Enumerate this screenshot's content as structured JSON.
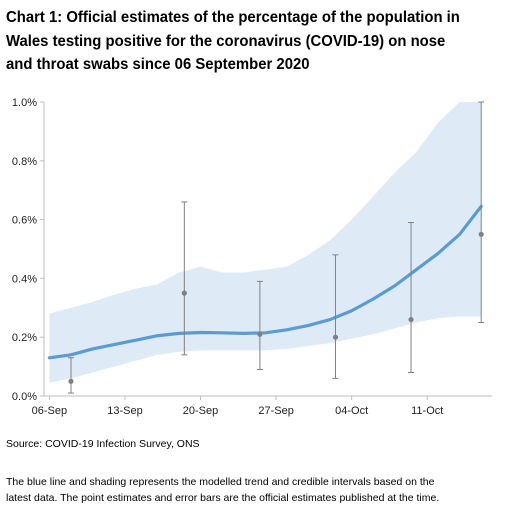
{
  "chart_title": {
    "lines": [
      "Chart 1: Official estimates of the percentage of the population in",
      "Wales testing positive for the coronavirus (COVID-19) on nose",
      "and throat swabs since 06 September 2020"
    ]
  },
  "source": "Source: COVID-19 Infection Survey, ONS",
  "footnote": {
    "lines": [
      "The blue line and shading represents the modelled trend and credible intervals based on the",
      "latest data. The point estimates and error bars are the official estimates published at the time."
    ]
  },
  "colors": {
    "trend_line": "#5b9bd5",
    "credible_band": "#deebf7",
    "estimate_point": "#808080",
    "error_bar": "#808080",
    "axis": "#bfbfbf"
  },
  "chart_data": {
    "type": "line",
    "x_ticks": [
      "06-Sep",
      "13-Sep",
      "20-Sep",
      "27-Sep",
      "04-Oct",
      "11-Oct"
    ],
    "y_ticks": [
      "0.0%",
      "0.2%",
      "0.4%",
      "0.6%",
      "0.8%",
      "1.0%"
    ],
    "ylim": [
      0,
      1.0
    ],
    "xlim_days": [
      -0.5,
      41
    ],
    "grid": false,
    "modelled_trend": {
      "x_days": [
        0,
        2,
        4,
        6,
        8,
        10,
        12,
        14,
        16,
        18,
        20,
        22,
        24,
        26,
        28,
        30,
        32,
        34,
        36,
        38,
        40
      ],
      "y": [
        0.13,
        0.14,
        0.16,
        0.175,
        0.19,
        0.205,
        0.213,
        0.216,
        0.215,
        0.213,
        0.215,
        0.225,
        0.24,
        0.26,
        0.29,
        0.33,
        0.375,
        0.43,
        0.485,
        0.55,
        0.645
      ],
      "lower": [
        0.045,
        0.06,
        0.08,
        0.1,
        0.12,
        0.14,
        0.15,
        0.155,
        0.155,
        0.155,
        0.155,
        0.16,
        0.17,
        0.18,
        0.195,
        0.21,
        0.23,
        0.25,
        0.265,
        0.27,
        0.27
      ],
      "upper": [
        0.28,
        0.3,
        0.32,
        0.345,
        0.365,
        0.38,
        0.42,
        0.44,
        0.42,
        0.42,
        0.43,
        0.44,
        0.48,
        0.53,
        0.6,
        0.68,
        0.76,
        0.83,
        0.93,
        1.0,
        1.0
      ]
    },
    "official_estimates": [
      {
        "x_day": 2,
        "value": 0.05,
        "lower": 0.01,
        "upper": 0.13
      },
      {
        "x_day": 12.5,
        "value": 0.35,
        "lower": 0.14,
        "upper": 0.66
      },
      {
        "x_day": 19.5,
        "value": 0.21,
        "lower": 0.09,
        "upper": 0.39
      },
      {
        "x_day": 26.5,
        "value": 0.2,
        "lower": 0.06,
        "upper": 0.48
      },
      {
        "x_day": 33.5,
        "value": 0.26,
        "lower": 0.08,
        "upper": 0.59
      },
      {
        "x_day": 40,
        "value": 0.55,
        "lower": 0.25,
        "upper": 1.0
      }
    ]
  }
}
